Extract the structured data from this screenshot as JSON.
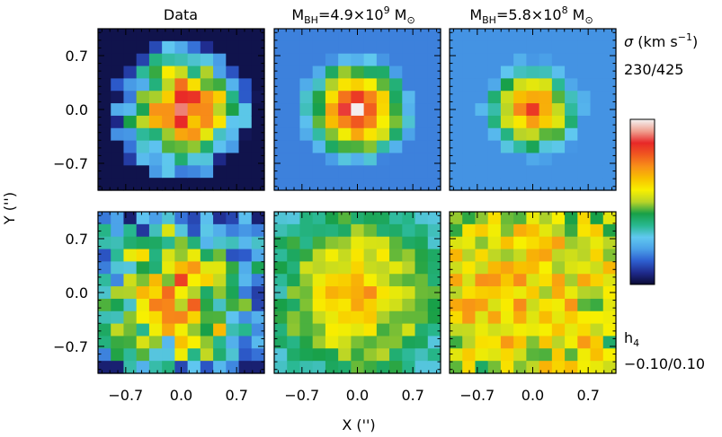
{
  "chart_data": {
    "type": "heatmap",
    "columns": [
      {
        "title": "Data"
      },
      {
        "title_main": "M",
        "title_sub": "BH",
        "title_value": "=4.9×10",
        "title_exp": "9",
        "title_unit": " M",
        "title_unit_sub": "⊙"
      },
      {
        "title_main": "M",
        "title_sub": "BH",
        "title_value": "=5.8×10",
        "title_exp": "8",
        "title_unit": " M",
        "title_unit_sub": "⊙"
      }
    ],
    "xlabel": "X ('')",
    "ylabel": "Y ('')",
    "xlim": [
      -1.05,
      1.05
    ],
    "ylim": [
      -1.05,
      1.05
    ],
    "xticks": [
      -0.7,
      0.0,
      0.7
    ],
    "yticks": [
      -0.7,
      0.0,
      0.7
    ],
    "xtick_labels": [
      "−0.7",
      "0.0",
      "0.7"
    ],
    "ytick_labels": [
      "−0.7",
      "0.0",
      "0.7"
    ],
    "rows": [
      {
        "quantity": "sigma",
        "label_symbol": "σ",
        "label_unit": " (km s",
        "label_unit_exp": "−1",
        "label_unit_close": ")",
        "range_text": "230/425",
        "vmin": 230,
        "vmax": 425
      },
      {
        "quantity": "h4",
        "label_symbol": "h",
        "label_sub": "4",
        "range_text": "−0.10/0.10",
        "vmin": -0.1,
        "vmax": 0.1
      }
    ],
    "colorbar": {
      "colormap": "sauron",
      "stops": [
        "#0a0a33",
        "#1f2a8c",
        "#2e5fd0",
        "#4aa0e8",
        "#60c8f0",
        "#28b890",
        "#18a048",
        "#b8d428",
        "#f8f000",
        "#f8c000",
        "#f89018",
        "#f05820",
        "#e82828",
        "#f0a090",
        "#f4f4f4"
      ]
    },
    "grid": false
  }
}
